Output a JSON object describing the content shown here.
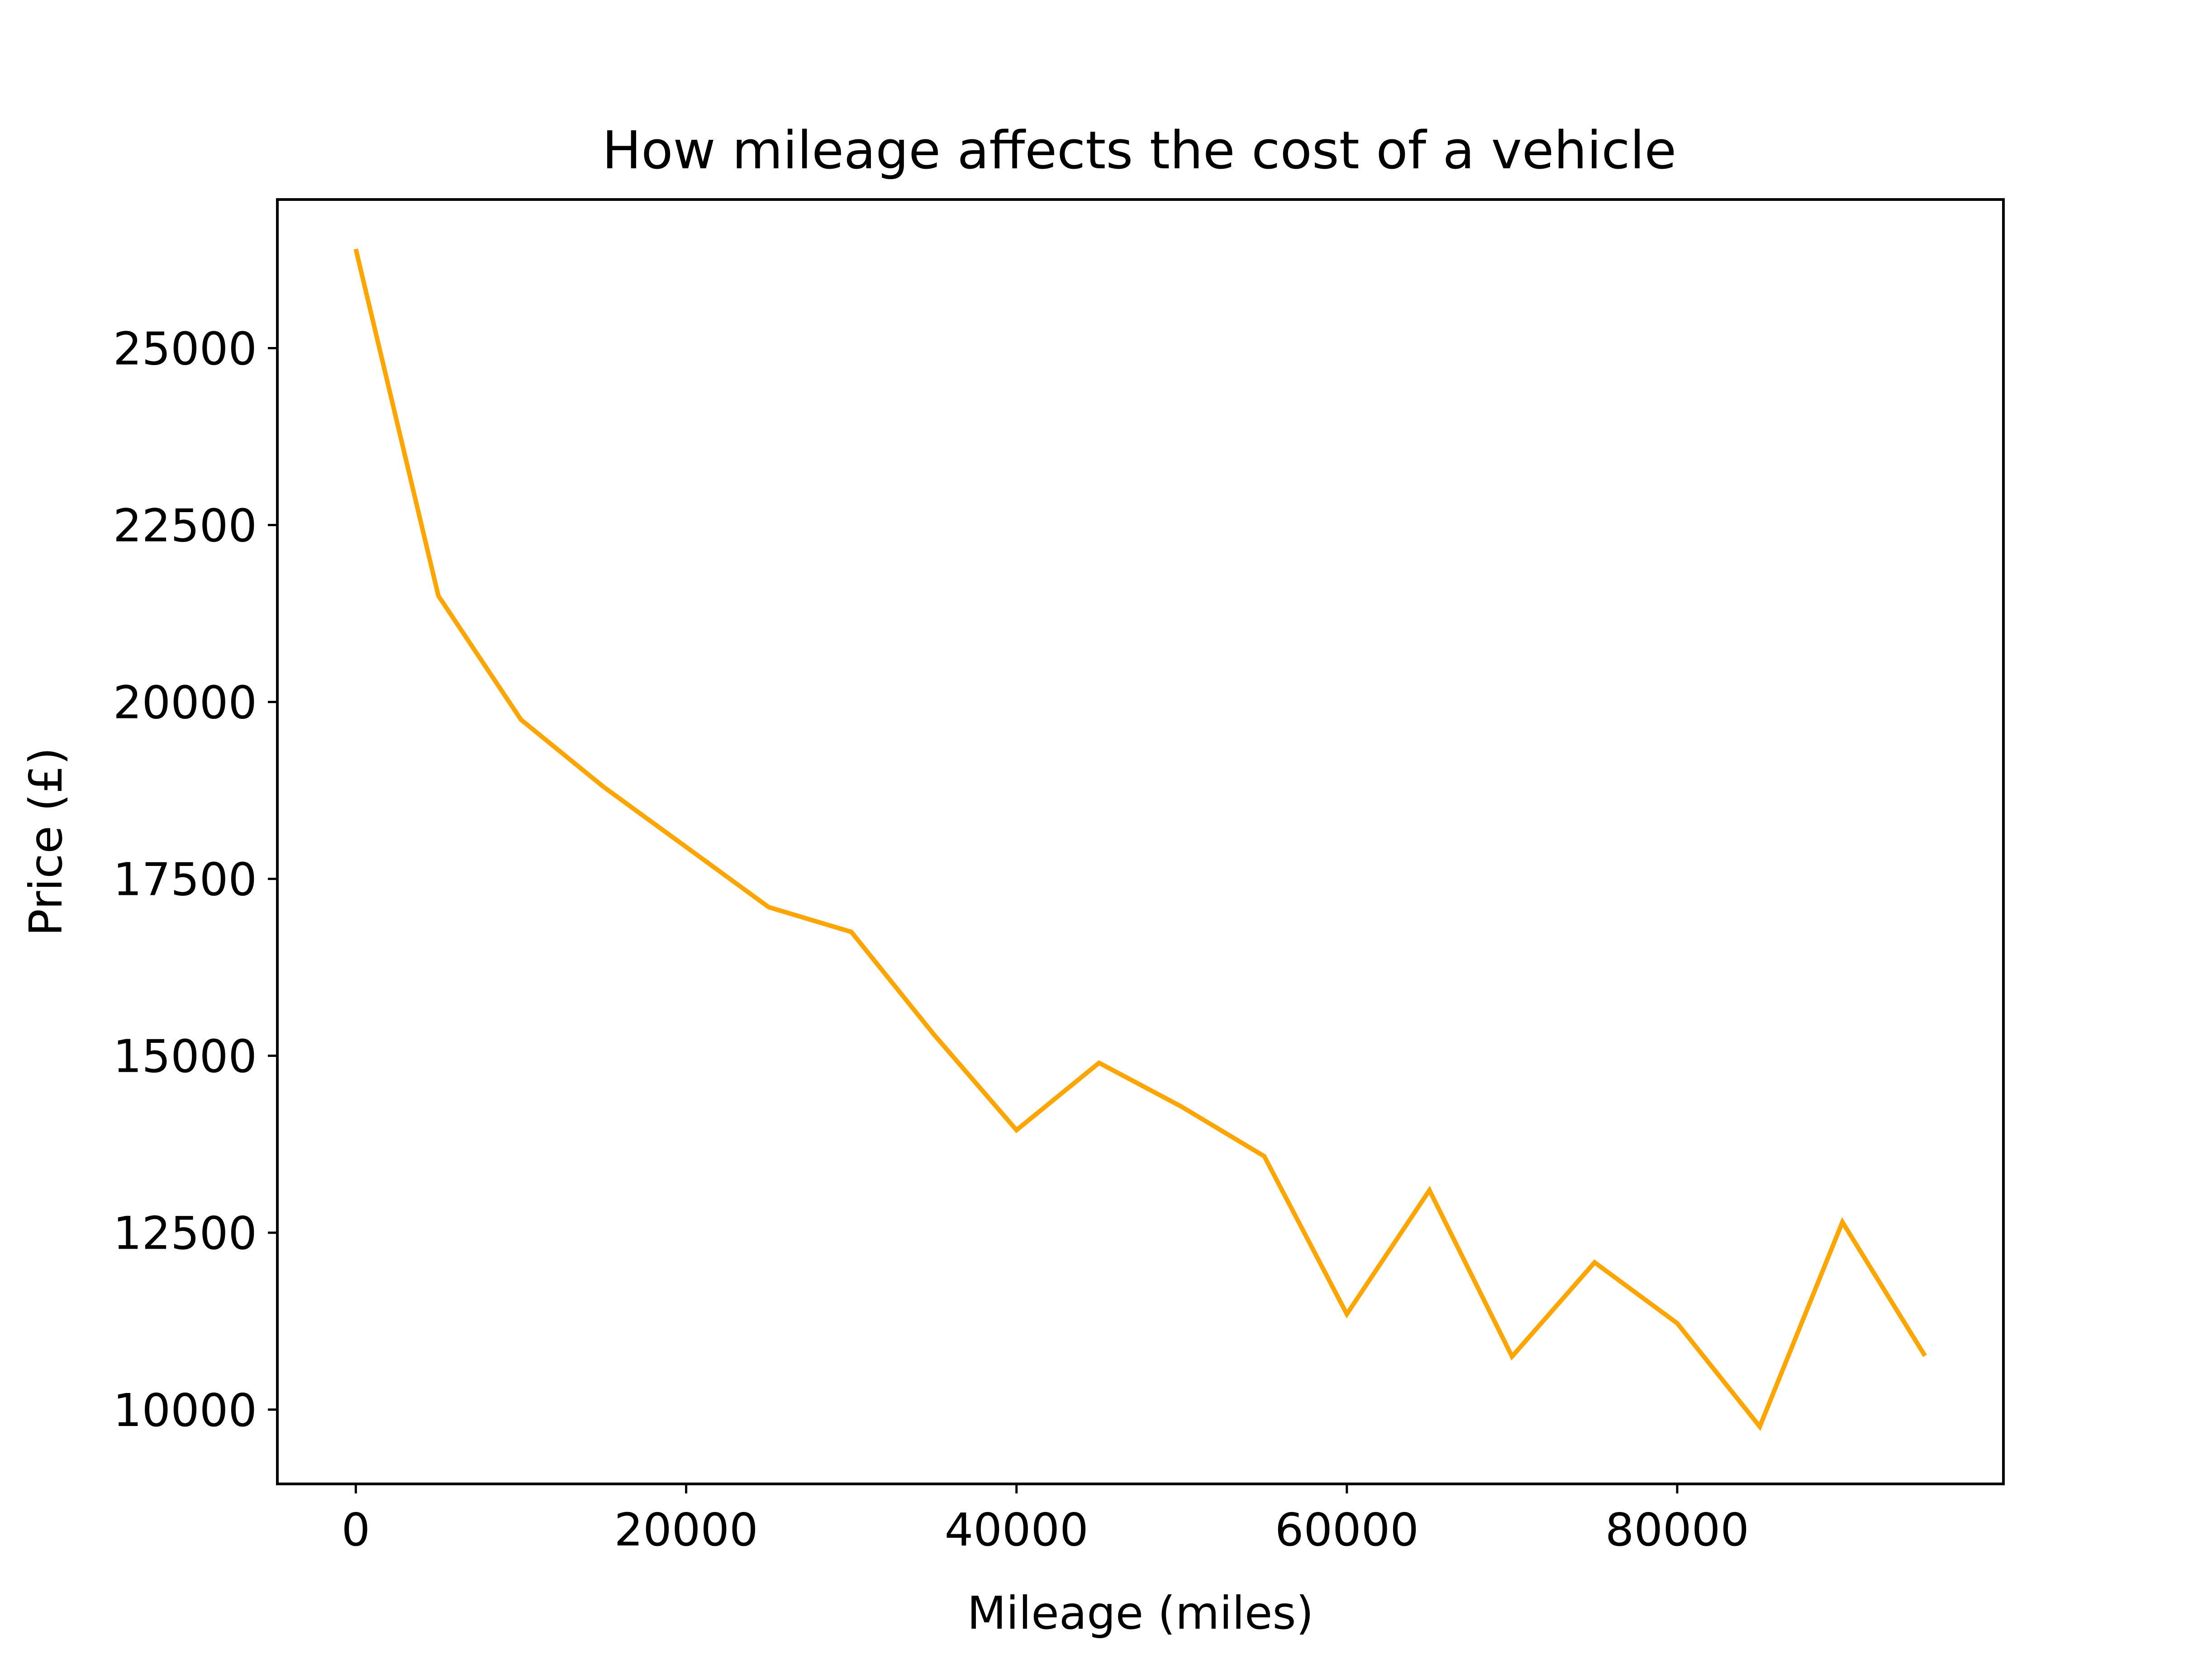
{
  "chart_data": {
    "type": "line",
    "title": "How mileage affects the cost of a vehicle",
    "xlabel": "Mileage (miles)",
    "ylabel": "Price (£)",
    "xlim": [
      -4750,
      99750
    ],
    "ylim": [
      8950,
      27100
    ],
    "x_ticks": [
      0,
      20000,
      40000,
      60000,
      80000
    ],
    "x_tick_labels": [
      "0",
      "20000",
      "40000",
      "60000",
      "80000"
    ],
    "y_ticks": [
      10000,
      12500,
      15000,
      17500,
      20000,
      22500,
      25000
    ],
    "y_tick_labels": [
      "10000",
      "12500",
      "15000",
      "17500",
      "20000",
      "22500",
      "25000"
    ],
    "grid": false,
    "series": [
      {
        "color": "#ffa500",
        "x": [
          0,
          5000,
          10000,
          15000,
          20000,
          25000,
          30000,
          35000,
          40000,
          45000,
          50000,
          55000,
          60000,
          65000,
          70000,
          75000,
          80000,
          85000,
          90000,
          95000
        ],
        "y": [
          26400,
          21500,
          19750,
          18800,
          17950,
          17100,
          16750,
          15300,
          13950,
          14900,
          14280,
          13580,
          11350,
          13100,
          10750,
          12080,
          11220,
          9760,
          12650,
          10760
        ]
      }
    ]
  }
}
